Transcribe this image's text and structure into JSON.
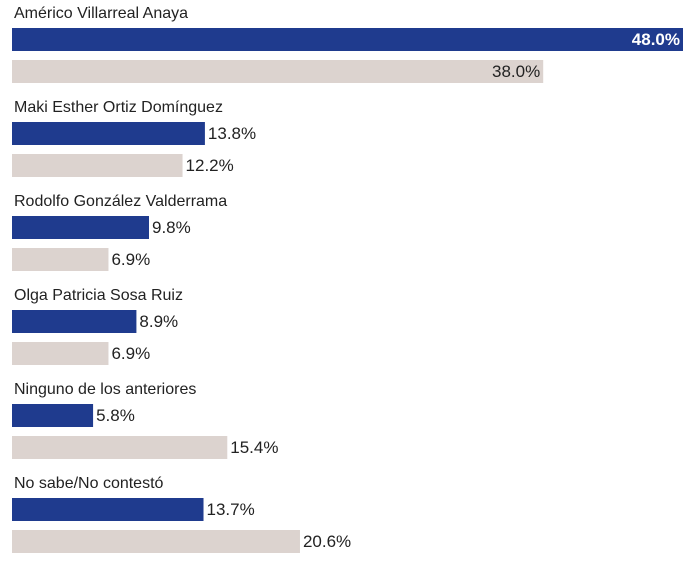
{
  "chart_data": {
    "type": "bar",
    "orientation": "horizontal",
    "categories": [
      "Américo Villarreal Anaya",
      "Maki Esther Ortiz Domínguez",
      "Rodolfo González Valderrama",
      "Olga Patricia Sosa Ruiz",
      "Ninguno de los anteriores",
      "No sabe/No contestó"
    ],
    "series": [
      {
        "color": "#1f3b8e",
        "values": [
          48.0,
          13.8,
          9.8,
          8.9,
          5.8,
          13.7
        ],
        "value_labels": [
          "48.0%",
          "13.8%",
          "9.8%",
          "8.9%",
          "5.8%",
          "13.7%"
        ]
      },
      {
        "color": "#dcd3cf",
        "values": [
          38.0,
          12.2,
          6.9,
          6.9,
          15.4,
          20.6
        ],
        "value_labels": [
          "38.0%",
          "12.2%",
          "6.9%",
          "6.9%",
          "15.4%",
          "20.6%"
        ]
      }
    ]
  }
}
